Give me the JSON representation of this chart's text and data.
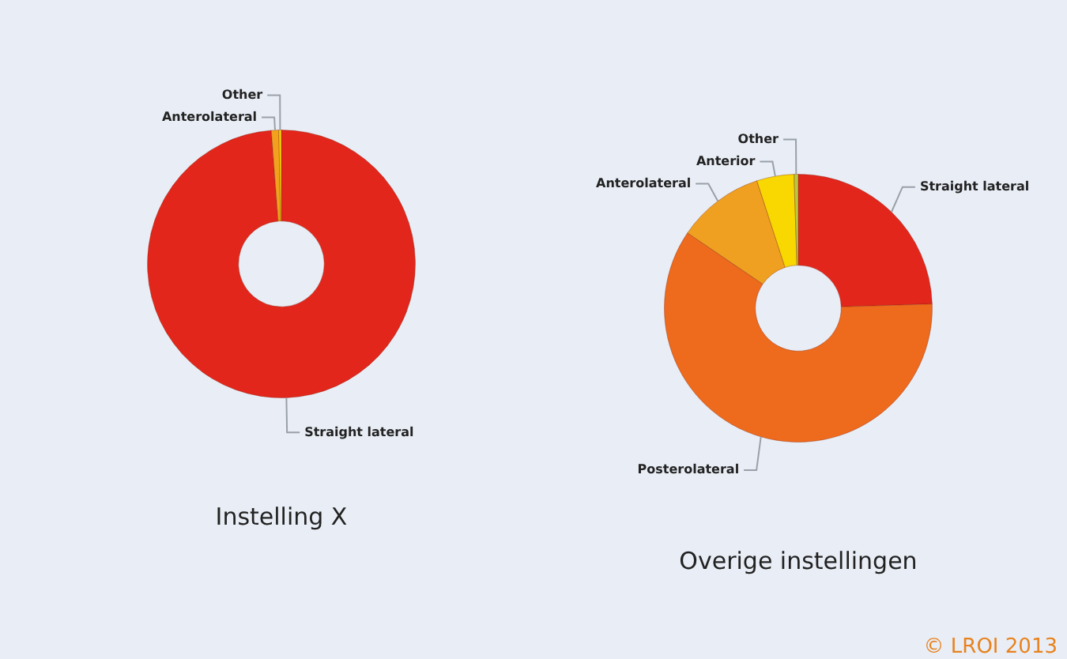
{
  "chart_data": [
    {
      "type": "donut",
      "title": "Instelling X",
      "categories": [
        "Straight lateral",
        "Anterolateral",
        "Other"
      ],
      "values": [
        98.8,
        0.9,
        0.3
      ],
      "colors": [
        "#e2261c",
        "#f2a01e",
        "#f5d400"
      ]
    },
    {
      "type": "donut",
      "title": "Overige instellingen",
      "categories": [
        "Straight lateral",
        "Posterolateral",
        "Anterolateral",
        "Anterior",
        "Other"
      ],
      "values": [
        24.5,
        60,
        10.5,
        4.5,
        0.5
      ],
      "colors": [
        "#e2261c",
        "#ee6a1c",
        "#f0a020",
        "#f8d800",
        "#b8c840"
      ],
      "annotations": [
        "© LROI 2013"
      ]
    }
  ]
}
